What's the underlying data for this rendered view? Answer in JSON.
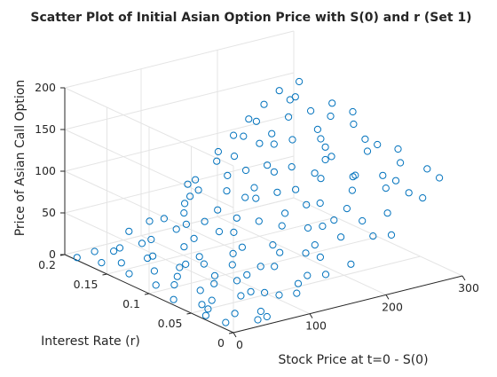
{
  "chart_data": {
    "type": "scatter3d",
    "title": "Scatter Plot of Initial Asian Option Price with S(0) and r (Set 1)",
    "xlabel": "Stock Price at t=0 - S(0)",
    "ylabel": "Interest Rate (r)",
    "zlabel": "Price of Asian Call Option",
    "xlim": [
      0,
      300
    ],
    "ylim": [
      0,
      0.2
    ],
    "zlim": [
      0,
      200
    ],
    "xticks": [
      "0",
      "100",
      "200",
      "300"
    ],
    "yticks": [
      "0",
      "0.05",
      "0.1",
      "0.15",
      "0.2"
    ],
    "zticks": [
      "0",
      "50",
      "100",
      "150",
      "200"
    ],
    "grid": true,
    "marker": "circle",
    "marker_color": "#0072BD",
    "series": [
      {
        "points_note": "sampled estimate of plotted scatter cloud",
        "points": [
          [
            5,
            0.19,
            0
          ],
          [
            12,
            0.02,
            0
          ],
          [
            20,
            0.11,
            1
          ],
          [
            25,
            0.06,
            0
          ],
          [
            30,
            0.16,
            2
          ],
          [
            35,
            0.03,
            1
          ],
          [
            40,
            0.13,
            4
          ],
          [
            45,
            0.08,
            3
          ],
          [
            50,
            0.18,
            6
          ],
          [
            55,
            0.01,
            2
          ],
          [
            60,
            0.15,
            8
          ],
          [
            65,
            0.05,
            6
          ],
          [
            70,
            0.12,
            10
          ],
          [
            75,
            0.09,
            9
          ],
          [
            80,
            0.17,
            14
          ],
          [
            85,
            0.04,
            10
          ],
          [
            90,
            0.14,
            17
          ],
          [
            95,
            0.07,
            15
          ],
          [
            100,
            0.19,
            22
          ],
          [
            105,
            0.02,
            14
          ],
          [
            110,
            0.1,
            23
          ],
          [
            115,
            0.16,
            29
          ],
          [
            120,
            0.06,
            24
          ],
          [
            125,
            0.13,
            32
          ],
          [
            130,
            0.03,
            25
          ],
          [
            135,
            0.18,
            40
          ],
          [
            140,
            0.08,
            36
          ],
          [
            145,
            0.15,
            44
          ],
          [
            150,
            0.05,
            38
          ],
          [
            155,
            0.11,
            47
          ],
          [
            160,
            0.19,
            58
          ],
          [
            165,
            0.01,
            40
          ],
          [
            170,
            0.14,
            58
          ],
          [
            175,
            0.07,
            53
          ],
          [
            180,
            0.17,
            68
          ],
          [
            185,
            0.04,
            54
          ],
          [
            190,
            0.12,
            69
          ],
          [
            195,
            0.09,
            67
          ],
          [
            200,
            0.18,
            82
          ],
          [
            205,
            0.02,
            60
          ],
          [
            210,
            0.15,
            83
          ],
          [
            215,
            0.06,
            72
          ],
          [
            220,
            0.13,
            88
          ],
          [
            225,
            0.1,
            87
          ],
          [
            230,
            0.16,
            99
          ],
          [
            235,
            0.03,
            76
          ],
          [
            240,
            0.19,
            110
          ],
          [
            245,
            0.08,
            94
          ],
          [
            250,
            0.11,
            103
          ],
          [
            255,
            0.05,
            92
          ],
          [
            260,
            0.17,
            120
          ],
          [
            265,
            0.14,
            118
          ],
          [
            270,
            0.02,
            91
          ],
          [
            275,
            0.09,
            113
          ],
          [
            280,
            0.18,
            135
          ],
          [
            285,
            0.06,
            111
          ],
          [
            290,
            0.12,
            128
          ],
          [
            295,
            0.15,
            138
          ],
          [
            298,
            0.04,
            110
          ],
          [
            10,
            0.08,
            0
          ],
          [
            18,
            0.14,
            1
          ],
          [
            28,
            0.19,
            2
          ],
          [
            38,
            0.06,
            2
          ],
          [
            48,
            0.11,
            5
          ],
          [
            58,
            0.02,
            3
          ],
          [
            68,
            0.17,
            12
          ],
          [
            78,
            0.05,
            8
          ],
          [
            88,
            0.12,
            15
          ],
          [
            98,
            0.09,
            17
          ],
          [
            108,
            0.18,
            28
          ],
          [
            118,
            0.03,
            18
          ],
          [
            128,
            0.15,
            34
          ],
          [
            138,
            0.07,
            32
          ],
          [
            148,
            0.13,
            43
          ],
          [
            158,
            0.04,
            36
          ],
          [
            168,
            0.16,
            57
          ],
          [
            178,
            0.1,
            56
          ],
          [
            188,
            0.19,
            74
          ],
          [
            198,
            0.06,
            62
          ],
          [
            208,
            0.14,
            80
          ],
          [
            218,
            0.01,
            63
          ],
          [
            228,
            0.11,
            88
          ],
          [
            238,
            0.17,
            105
          ],
          [
            248,
            0.08,
            95
          ],
          [
            258,
            0.13,
            113
          ],
          [
            268,
            0.05,
            98
          ],
          [
            278,
            0.16,
            128
          ],
          [
            288,
            0.09,
            118
          ],
          [
            296,
            0.19,
            145
          ],
          [
            8,
            0.04,
            0
          ],
          [
            15,
            0.17,
            1
          ],
          [
            33,
            0.1,
            3
          ],
          [
            43,
            0.01,
            1
          ],
          [
            53,
            0.15,
            7
          ],
          [
            63,
            0.08,
            7
          ],
          [
            73,
            0.19,
            16
          ],
          [
            83,
            0.11,
            12
          ],
          [
            93,
            0.03,
            10
          ],
          [
            103,
            0.14,
            24
          ],
          [
            113,
            0.07,
            21
          ],
          [
            123,
            0.17,
            36
          ],
          [
            133,
            0.12,
            34
          ],
          [
            143,
            0.02,
            28
          ],
          [
            153,
            0.18,
            52
          ],
          [
            163,
            0.09,
            49
          ],
          [
            173,
            0.13,
            61
          ],
          [
            183,
            0.06,
            58
          ],
          [
            193,
            0.16,
            76
          ],
          [
            203,
            0.11,
            74
          ],
          [
            213,
            0.04,
            67
          ],
          [
            223,
            0.19,
            96
          ],
          [
            233,
            0.07,
            85
          ],
          [
            243,
            0.15,
            106
          ],
          [
            253,
            0.12,
            109
          ],
          [
            263,
            0.03,
            94
          ],
          [
            273,
            0.18,
            133
          ],
          [
            283,
            0.1,
            121
          ],
          [
            293,
            0.07,
            121
          ],
          [
            300,
            0.13,
            136
          ],
          [
            22,
            0.05,
            0
          ],
          [
            42,
            0.18,
            4
          ],
          [
            62,
            0.12,
            8
          ],
          [
            82,
            0.07,
            11
          ],
          [
            102,
            0.16,
            26
          ],
          [
            122,
            0.1,
            28
          ],
          [
            142,
            0.18,
            47
          ],
          [
            162,
            0.05,
            45
          ],
          [
            182,
            0.14,
            67
          ],
          [
            202,
            0.08,
            72
          ],
          [
            222,
            0.17,
            97
          ],
          [
            242,
            0.11,
            101
          ],
          [
            262,
            0.06,
            101
          ],
          [
            282,
            0.14,
            130
          ],
          [
            292,
            0.02,
            110
          ],
          [
            150,
            0.19,
            55
          ],
          [
            270,
            0.19,
            140
          ],
          [
            250,
            0.19,
            128
          ],
          [
            230,
            0.19,
            115
          ],
          [
            210,
            0.19,
            100
          ],
          [
            190,
            0.19,
            85
          ]
        ]
      }
    ]
  }
}
